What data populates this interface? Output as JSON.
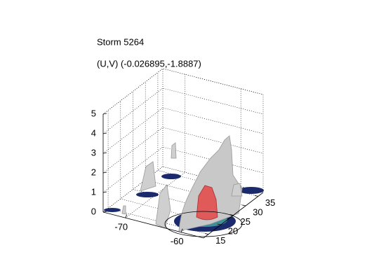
{
  "chart_data": {
    "type": "isosurface3d",
    "title": "Storm 5264",
    "subtitle": "(U,V) (-0.026895,-1.8887)",
    "xlim": [
      -74,
      -56
    ],
    "xticks": [
      -70,
      -60
    ],
    "ylim": [
      13,
      37
    ],
    "yticks": [
      15,
      20,
      25,
      30,
      35
    ],
    "zlim": [
      0,
      5
    ],
    "zticks": [
      0,
      1,
      2,
      3,
      4,
      5
    ],
    "grid": true
  }
}
